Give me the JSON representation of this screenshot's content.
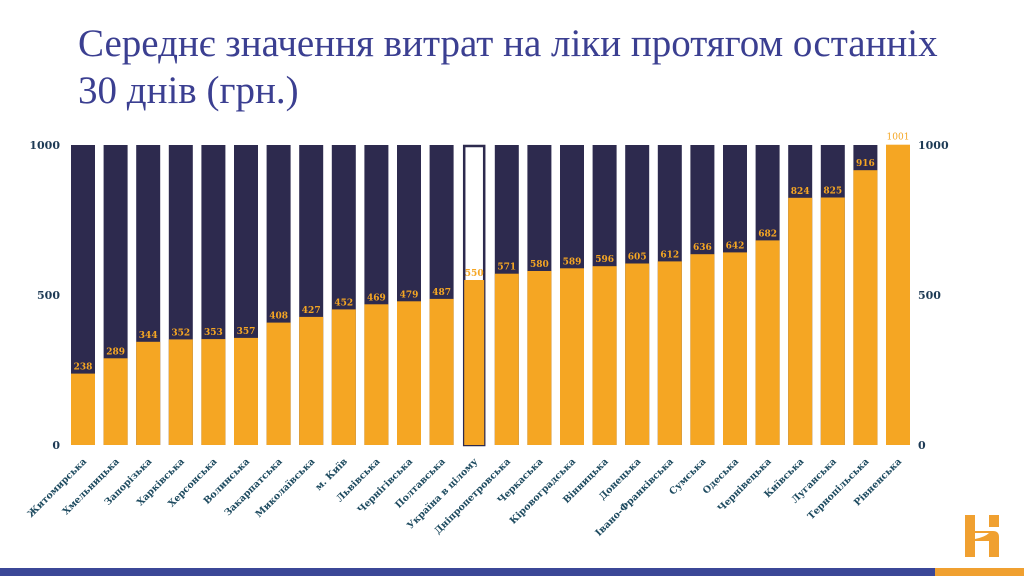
{
  "chart_data": {
    "type": "bar",
    "title": "Середнє значення витрат на ліки протягом останніх 30 днів (грн.)",
    "categories": [
      "Житомирська",
      "Хмельницька",
      "Запорізька",
      "Харківська",
      "Херсонська",
      "Волинська",
      "Закарпатська",
      "Миколаївська",
      "м. Київ",
      "Львівська",
      "Чернігівська",
      "Полтавська",
      "Україна в цілому",
      "Дніпропетровська",
      "Черкаська",
      "Кіровоградська",
      "Вінницька",
      "Донецька",
      "Івано-Франківська",
      "Сумська",
      "Одеська",
      "Чернівецька",
      "Київська",
      "Луганська",
      "Тернопільська",
      "Рівненська"
    ],
    "values": [
      238,
      289,
      344,
      352,
      353,
      357,
      408,
      427,
      452,
      469,
      479,
      487,
      550,
      571,
      580,
      589,
      596,
      605,
      612,
      636,
      642,
      682,
      824,
      825,
      916,
      1001
    ],
    "value_labels": [
      "238",
      "289",
      "344",
      "352",
      "353",
      "357",
      "408",
      "427",
      "452",
      "469",
      "479",
      "487",
      "550",
      "571",
      "580",
      "589",
      "596",
      "605",
      "612",
      "636",
      "642",
      "682",
      "824",
      "825",
      "916",
      "1001"
    ],
    "highlight_category": "Україна в цілому",
    "ylim": [
      0,
      1000
    ],
    "yticks": [
      "0",
      "500",
      "1000"
    ],
    "yticks_right": [
      "0",
      "500",
      "1000"
    ],
    "xlabel": "",
    "ylabel": "",
    "legend": "none",
    "grid": false,
    "colors": {
      "value": "#f5a623",
      "background_bar": "#2d2a4e",
      "highlight_outline": "#2d2a4e",
      "title": "#3b3f91"
    }
  }
}
